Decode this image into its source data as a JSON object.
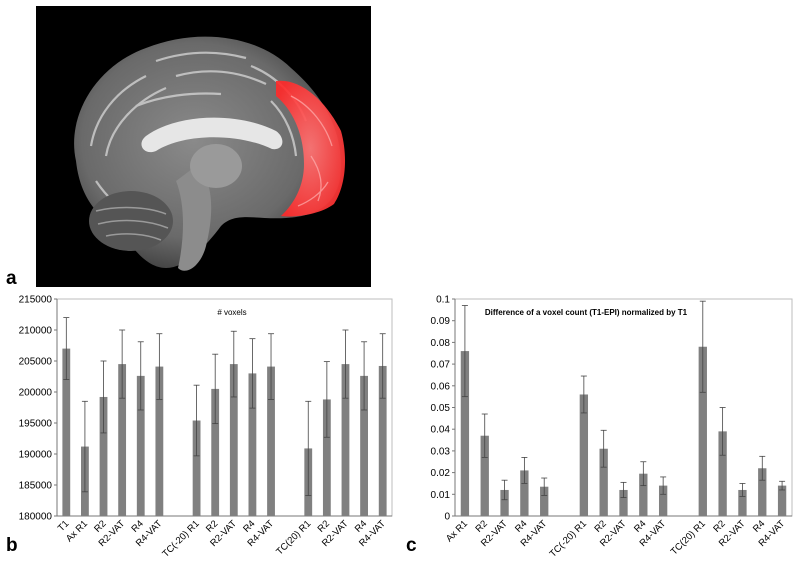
{
  "panels": {
    "a": "a",
    "b": "b",
    "c": "c"
  },
  "colors": {
    "bar": "#808080",
    "brain_highlight": "#ff3b3b",
    "background_image": "#000000"
  },
  "chart_data": [
    {
      "type": "bar",
      "title": "# voxels",
      "xlabel": "",
      "ylabel": "",
      "ylim": [
        180000,
        215000
      ],
      "yticks": [
        180000,
        185000,
        190000,
        195000,
        200000,
        205000,
        210000,
        215000
      ],
      "grid": false,
      "categories": [
        "T1",
        "Ax R1",
        "R2",
        "R2-VAT",
        "R4",
        "R4-VAT",
        "",
        "TC(-20) R1",
        "R2",
        "R2-VAT",
        "R4",
        "R4-VAT",
        "",
        "TC(20) R1",
        "R2",
        "R2-VAT",
        "R4",
        "R4-VAT"
      ],
      "values": [
        207000,
        191200,
        199200,
        204500,
        202600,
        204100,
        null,
        195400,
        200500,
        204500,
        203000,
        204100,
        null,
        190900,
        198800,
        204500,
        202600,
        204200
      ],
      "errors": [
        5000,
        7300,
        5800,
        5500,
        5500,
        5300,
        null,
        5700,
        5600,
        5300,
        5600,
        5300,
        null,
        7600,
        6100,
        5500,
        5500,
        5200
      ]
    },
    {
      "type": "bar",
      "title": "Difference of a voxel count (T1-EPI) normalized by T1",
      "xlabel": "",
      "ylabel": "",
      "ylim": [
        0,
        0.1
      ],
      "yticks": [
        0,
        0.01,
        0.02,
        0.03,
        0.04,
        0.05,
        0.06,
        0.07,
        0.08,
        0.09,
        0.1
      ],
      "grid": false,
      "categories": [
        "Ax R1",
        "R2",
        "R2-VAT",
        "R4",
        "R4-VAT",
        "",
        "TC(-20) R1",
        "R2",
        "R2-VAT",
        "R4",
        "R4-VAT",
        "",
        "TC(20) R1",
        "R2",
        "R2-VAT",
        "R4",
        "R4-VAT"
      ],
      "values": [
        0.076,
        0.037,
        0.012,
        0.021,
        0.0135,
        null,
        0.056,
        0.031,
        0.012,
        0.0195,
        0.014,
        null,
        0.078,
        0.039,
        0.012,
        0.022,
        0.014
      ],
      "errors": [
        0.021,
        0.01,
        0.0045,
        0.006,
        0.004,
        null,
        0.0085,
        0.0085,
        0.0035,
        0.0055,
        0.004,
        null,
        0.021,
        0.011,
        0.003,
        0.0055,
        0.002
      ]
    }
  ]
}
